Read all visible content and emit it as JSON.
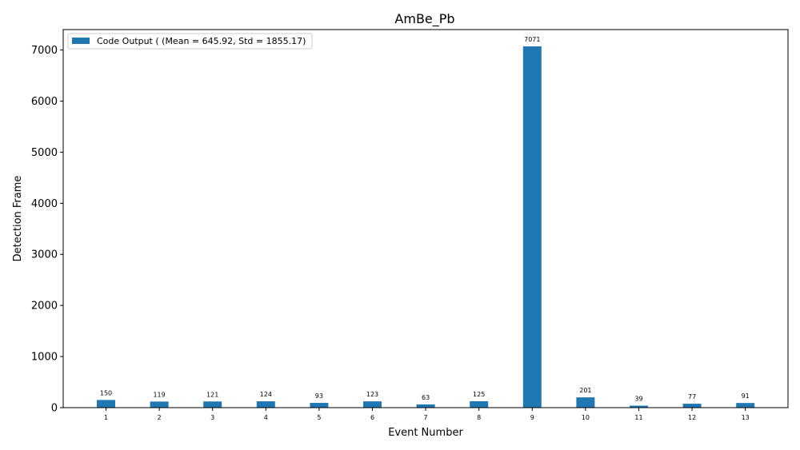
{
  "chart_data": {
    "type": "bar",
    "title": "AmBe_Pb",
    "xlabel": "Event Number",
    "ylabel": "Detection Frame",
    "categories": [
      "1",
      "2",
      "3",
      "4",
      "5",
      "6",
      "7",
      "8",
      "9",
      "10",
      "11",
      "12",
      "13"
    ],
    "series": [
      {
        "name": "Code Output ( (Mean = 645.92, Std = 1855.17)",
        "color": "#1f77b4",
        "values": [
          150,
          119,
          121,
          124,
          93,
          123,
          63,
          125,
          7071,
          201,
          39,
          77,
          91
        ]
      }
    ],
    "data_labels": [
      "150",
      "119",
      "121",
      "124",
      "93",
      "123",
      "63",
      "125",
      "7071",
      "201",
      "39",
      "77",
      "91"
    ],
    "ylim": [
      0,
      7400
    ],
    "yticks": [
      0,
      1000,
      2000,
      3000,
      4000,
      5000,
      6000,
      7000
    ],
    "ytick_labels": [
      "0",
      "1000",
      "2000",
      "3000",
      "4000",
      "5000",
      "6000",
      "7000"
    ],
    "grid": false,
    "legend_position": "top-left"
  }
}
